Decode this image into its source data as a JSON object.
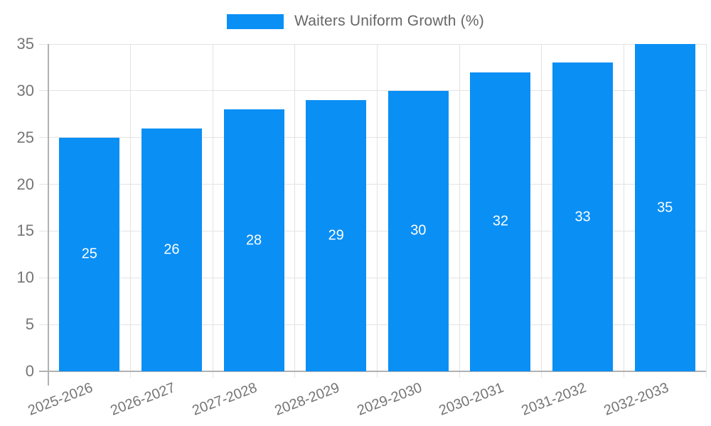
{
  "chart_data": {
    "type": "bar",
    "title": "Waiters Uniform Growth (%)",
    "legend_entries": [
      "Waiters Uniform Growth (%)"
    ],
    "legend_position": "top-center",
    "categories": [
      "2025-2026",
      "2026-2027",
      "2027-2028",
      "2028-2029",
      "2029-2030",
      "2030-2031",
      "2031-2032",
      "2032-2033"
    ],
    "values": [
      25,
      26,
      28,
      29,
      30,
      32,
      33,
      35
    ],
    "bar_labels": [
      "25",
      "26",
      "28",
      "29",
      "30",
      "32",
      "33",
      "35"
    ],
    "xlabel": "",
    "ylabel": "",
    "ylim": [
      0,
      35
    ],
    "yticks": [
      0,
      5,
      10,
      15,
      20,
      25,
      30,
      35
    ],
    "grid": true,
    "x_label_rotation_deg": -21,
    "colors": {
      "bar": "#0a8ff5",
      "bar_label": "#ffffff",
      "gridline": "#e3e3e3",
      "axis_line": "#b1b1b1",
      "tick_label": "#757575",
      "legend_text": "#666666",
      "background": "#ffffff"
    }
  }
}
